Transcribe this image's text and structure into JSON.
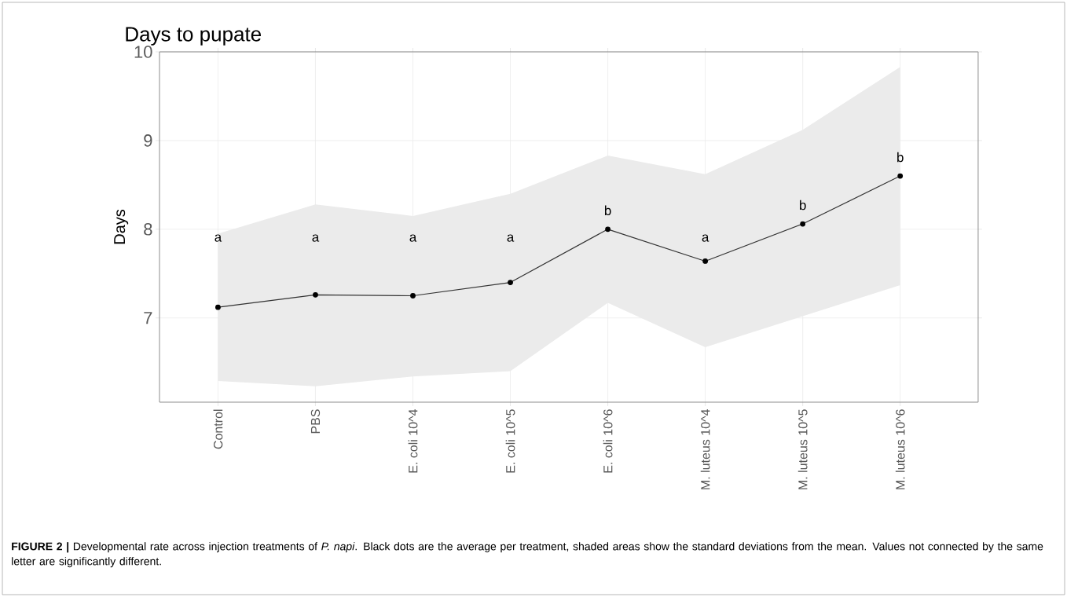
{
  "chart_data": {
    "type": "line",
    "title": "Days to pupate",
    "ylabel": "Days",
    "categories": [
      "Control",
      "PBS",
      "E. coli 10^4",
      "E. coli 10^5",
      "E. coli 10^6",
      "M. luteus 10^4",
      "M. luteus 10^5",
      "M. luteus 10^6"
    ],
    "series": [
      {
        "color": "#333333",
        "values": [
          7.12,
          7.26,
          7.25,
          7.4,
          8.0,
          7.64,
          8.06,
          8.6
        ],
        "lower": [
          6.29,
          6.23,
          6.34,
          6.4,
          7.17,
          6.67,
          7.02,
          7.37
        ],
        "upper": [
          7.95,
          8.28,
          8.15,
          8.4,
          8.83,
          8.62,
          9.12,
          9.83
        ]
      }
    ],
    "ylim": [
      6.05,
      10.0
    ],
    "yticks": [
      7,
      8,
      9,
      10
    ],
    "grid": true,
    "marker": "circle",
    "line_style": "solid",
    "annotations": [
      "a",
      "a",
      "a",
      "a",
      "b",
      "a",
      "b",
      "b",
      "**FIGURE 2 |** Developmental rate across injection treatments of *P. napi*. Black dots are the average per treatment, shaded areas show the standard deviations from the mean. Values not connected by the same letter are significantly different."
    ]
  }
}
